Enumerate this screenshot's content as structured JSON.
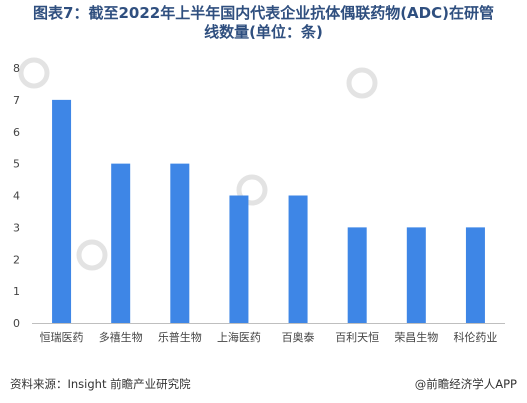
{
  "title_line1": "图表7：截至2022年上半年国内代表企业抗体偶联药物(ADC)在研管",
  "title_line2": "线数量(单位：条)",
  "source": "资料来源：Insight 前瞻产业研究院",
  "credit": "@前瞻经济学人APP",
  "colors": {
    "bar": "#3e86e6",
    "title": "#2f4f7f",
    "axis_text": "#444444"
  },
  "chart_data": {
    "type": "bar",
    "title": "图表7：截至2022年上半年国内代表企业抗体偶联药物(ADC)在研管线数量(单位：条)",
    "xlabel": "",
    "ylabel": "",
    "categories": [
      "恒瑞医药",
      "多禧生物",
      "乐普生物",
      "上海医药",
      "百奥泰",
      "百利天恒",
      "荣昌生物",
      "科伦药业"
    ],
    "values": [
      7,
      5,
      5,
      4,
      4,
      3,
      3,
      3
    ],
    "ylim": [
      0,
      8
    ],
    "yticks": [
      0,
      1,
      2,
      3,
      4,
      5,
      6,
      7,
      8
    ],
    "grid": false,
    "legend": "none"
  }
}
